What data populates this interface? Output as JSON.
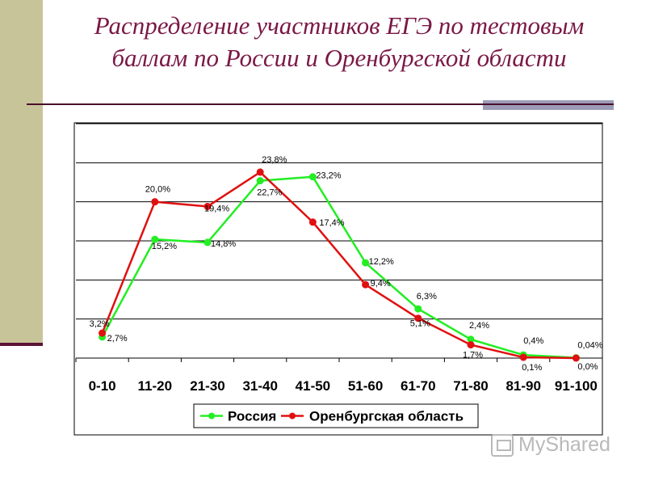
{
  "slide": {
    "title": "Распределение участников ЕГЭ по тестовым баллам по России и Оренбургской области",
    "watermark": "MyShared"
  },
  "colors": {
    "title": "#7a1846",
    "side_bar": "#c8c49a",
    "russia": "#22ee22",
    "orenburg": "#e01010"
  },
  "chart_data": {
    "type": "line",
    "categories": [
      "0-10",
      "11-20",
      "21-30",
      "31-40",
      "41-50",
      "51-60",
      "61-70",
      "71-80",
      "81-90",
      "91-100"
    ],
    "series": [
      {
        "name": "Россия",
        "color": "#22ee22",
        "values": [
          2.7,
          15.2,
          14.8,
          22.7,
          23.2,
          12.2,
          6.3,
          2.4,
          0.4,
          0.04
        ],
        "labels": [
          "2,7%",
          "15,2%",
          "14,8%",
          "22,7%",
          "23,2%",
          "12,2%",
          "6,3%",
          "2,4%",
          "0,4%",
          "0,04%"
        ]
      },
      {
        "name": "Оренбургская область",
        "color": "#e01010",
        "values": [
          3.2,
          20.0,
          19.4,
          23.8,
          17.4,
          9.4,
          5.1,
          1.7,
          0.1,
          0.0
        ],
        "labels": [
          "3,2%",
          "20,0%",
          "19,4%",
          "23,8%",
          "17,4%",
          "9,4%",
          "5,1%",
          "1,7%",
          "0,1%",
          "0,0%"
        ]
      }
    ],
    "ylim": [
      0,
      30
    ],
    "y_gridlines": [
      5,
      10,
      15,
      20,
      25,
      30
    ],
    "grid": true,
    "legend": "bottom"
  }
}
